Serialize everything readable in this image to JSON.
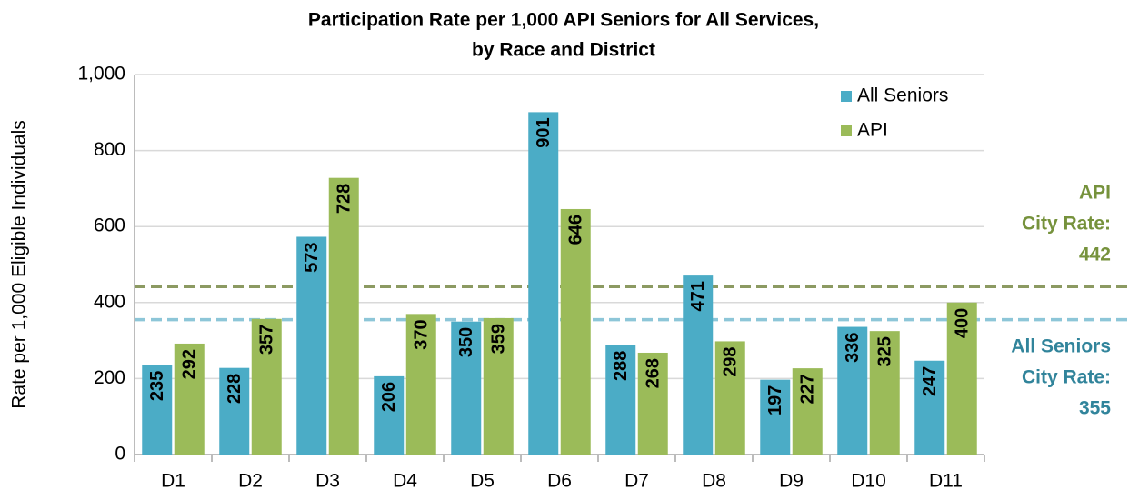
{
  "chart_data": {
    "type": "bar",
    "title": [
      "Participation Rate per 1,000 API Seniors for All Services,",
      "by Race and District"
    ],
    "y_label": "Rate per 1,000 Eligible Individuals",
    "categories": [
      "D1",
      "D2",
      "D3",
      "D4",
      "D5",
      "D6",
      "D7",
      "D8",
      "D9",
      "D10",
      "D11"
    ],
    "series": [
      {
        "name": "All Seniors",
        "color": "#4bacc6",
        "values": [
          235,
          228,
          573,
          206,
          350,
          901,
          288,
          471,
          197,
          336,
          247
        ]
      },
      {
        "name": "API",
        "color": "#9bbb59",
        "values": [
          292,
          357,
          728,
          370,
          359,
          646,
          268,
          298,
          227,
          325,
          400
        ]
      }
    ],
    "ylim": [
      0,
      1000
    ],
    "yticks": [
      0,
      200,
      400,
      600,
      {
        "value": 800,
        "label": "800"
      },
      {
        "value": 1000,
        "label": "1,000"
      }
    ],
    "grid": true,
    "legend": "upper right",
    "reference_lines": [
      {
        "label": [
          "API",
          "City Rate:"
        ],
        "value": 442,
        "color": "#8c9a62",
        "text_color": "#76923c"
      },
      {
        "label": [
          "All Seniors",
          "City Rate:"
        ],
        "value": 355,
        "color": "#8dc6d8",
        "text_color": "#31849b"
      }
    ]
  }
}
